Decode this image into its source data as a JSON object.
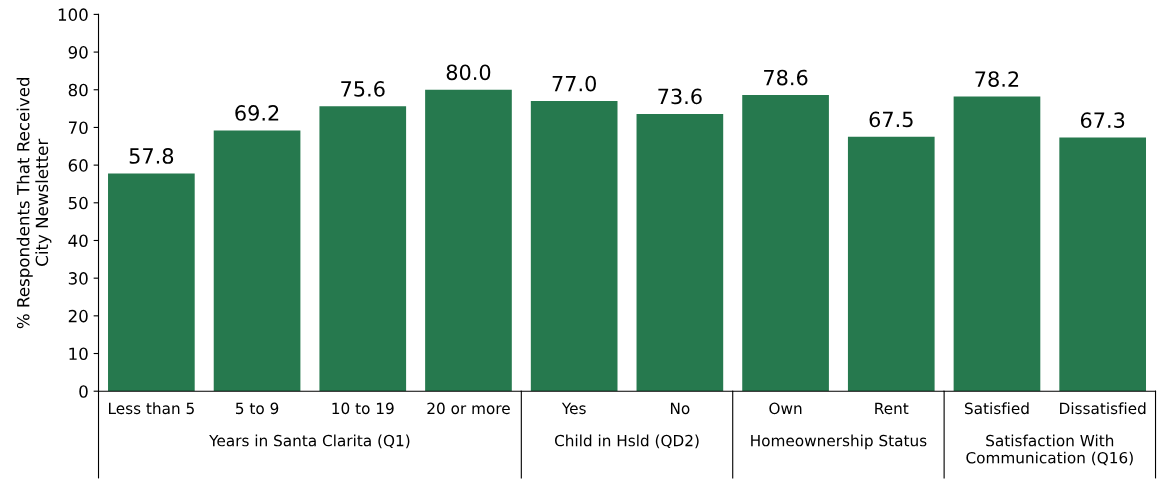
{
  "chart_data": [
    {
      "type": "bar",
      "ylabel": "% Respondents That Received\nCity Newsletter",
      "categories": [
        "Less than 5",
        "5 to 9",
        "10 to 19",
        "20 or more"
      ],
      "values": [
        57.8,
        69.2,
        75.6,
        80.0
      ],
      "value_labels": [
        "57.8",
        "69.2",
        "75.6",
        "80.0"
      ],
      "color": "#26794e",
      "ylim": [
        0,
        100
      ],
      "yticks": [
        0,
        10,
        20,
        30,
        40,
        50,
        60,
        70,
        80,
        90,
        100
      ],
      "annotations": [
        "Years in Santa Clarita (Q1)"
      ]
    },
    {
      "type": "bar",
      "categories": [
        "Yes",
        "No"
      ],
      "values": [
        77.0,
        73.6
      ],
      "value_labels": [
        "77.0",
        "73.6"
      ],
      "color": "#26794e",
      "ylim": [
        0,
        100
      ],
      "tick_labels": "x",
      "annotations": [
        "Child in Hsld (QD2)"
      ]
    },
    {
      "type": "bar",
      "categories": [
        "Own",
        "Rent"
      ],
      "values": [
        78.6,
        67.5
      ],
      "value_labels": [
        "78.6",
        "67.5"
      ],
      "color": "#26794e",
      "ylim": [
        0,
        100
      ],
      "tick_labels": "x",
      "annotations": [
        "Homeownership Status"
      ]
    },
    {
      "type": "bar",
      "categories": [
        "Satisfied",
        "Dissatisfied"
      ],
      "values": [
        78.2,
        67.3
      ],
      "value_labels": [
        "78.2",
        "67.3"
      ],
      "color": "#26794e",
      "ylim": [
        0,
        100
      ],
      "tick_labels": "x",
      "annotations": [
        "Satisfaction With\nCommunication (Q16)"
      ]
    }
  ]
}
